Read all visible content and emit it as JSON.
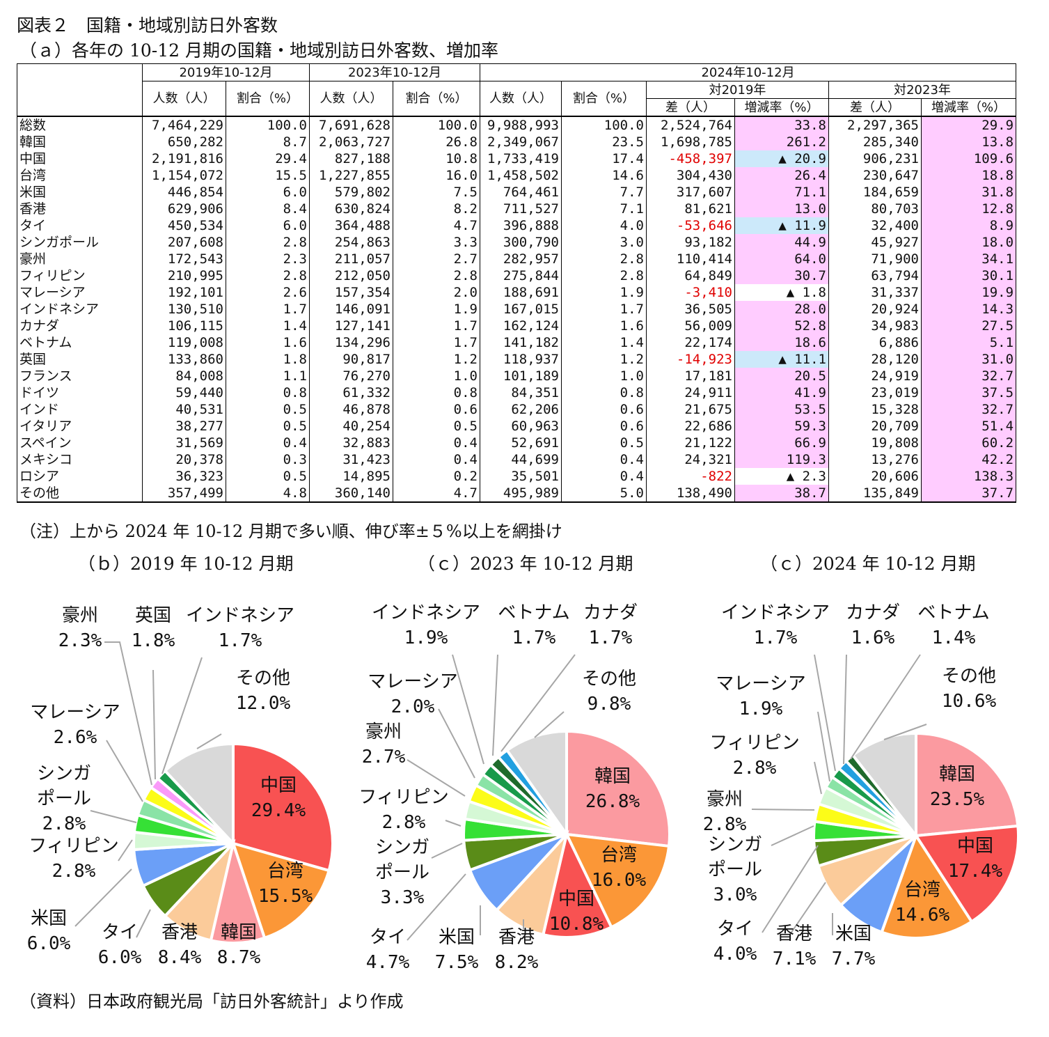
{
  "title": "図表２　国籍・地域別訪日外客数",
  "subtitle": "（ａ）各年の 10-12 月期の国籍・地域別訪日外客数、増加率",
  "note": "（注）上から 2024 年 10-12 月期で多い順、伸び率±５%以上を網掛け",
  "source": "（資料）日本政府観光局「訪日外客統計」より作成",
  "headers": {
    "p2019": "2019年10-12月",
    "p2023": "2023年10-12月",
    "p2024": "2024年10-12月",
    "count": "人数（人）",
    "share": "割合（%）",
    "vs2019": "対2019年",
    "vs2023": "対2023年",
    "diff": "差（人）",
    "rate": "増減率（%）"
  },
  "rows": [
    {
      "name": "総数",
      "c19": "7,464,229",
      "s19": "100.0",
      "c23": "7,691,628",
      "s23": "100.0",
      "c24": "9,988,993",
      "s24": "100.0",
      "d19": "2,524,764",
      "r19": "33.8",
      "d23": "2,297,365",
      "r23": "29.9"
    },
    {
      "name": "韓国",
      "c19": "650,282",
      "s19": "8.7",
      "c23": "2,063,727",
      "s23": "26.8",
      "c24": "2,349,067",
      "s24": "23.5",
      "d19": "1,698,785",
      "r19": "261.2",
      "d23": "285,340",
      "r23": "13.8"
    },
    {
      "name": "中国",
      "c19": "2,191,816",
      "s19": "29.4",
      "c23": "827,188",
      "s23": "10.8",
      "c24": "1,733,419",
      "s24": "17.4",
      "d19": "-458,397",
      "r19": "▲ 20.9",
      "d23": "906,231",
      "r23": "109.6"
    },
    {
      "name": "台湾",
      "c19": "1,154,072",
      "s19": "15.5",
      "c23": "1,227,855",
      "s23": "16.0",
      "c24": "1,458,502",
      "s24": "14.6",
      "d19": "304,430",
      "r19": "26.4",
      "d23": "230,647",
      "r23": "18.8"
    },
    {
      "name": "米国",
      "c19": "446,854",
      "s19": "6.0",
      "c23": "579,802",
      "s23": "7.5",
      "c24": "764,461",
      "s24": "7.7",
      "d19": "317,607",
      "r19": "71.1",
      "d23": "184,659",
      "r23": "31.8"
    },
    {
      "name": "香港",
      "c19": "629,906",
      "s19": "8.4",
      "c23": "630,824",
      "s23": "8.2",
      "c24": "711,527",
      "s24": "7.1",
      "d19": "81,621",
      "r19": "13.0",
      "d23": "80,703",
      "r23": "12.8"
    },
    {
      "name": "タイ",
      "c19": "450,534",
      "s19": "6.0",
      "c23": "364,488",
      "s23": "4.7",
      "c24": "396,888",
      "s24": "4.0",
      "d19": "-53,646",
      "r19": "▲ 11.9",
      "d23": "32,400",
      "r23": "8.9"
    },
    {
      "name": "シンガポール",
      "c19": "207,608",
      "s19": "2.8",
      "c23": "254,863",
      "s23": "3.3",
      "c24": "300,790",
      "s24": "3.0",
      "d19": "93,182",
      "r19": "44.9",
      "d23": "45,927",
      "r23": "18.0"
    },
    {
      "name": "豪州",
      "c19": "172,543",
      "s19": "2.3",
      "c23": "211,057",
      "s23": "2.7",
      "c24": "282,957",
      "s24": "2.8",
      "d19": "110,414",
      "r19": "64.0",
      "d23": "71,900",
      "r23": "34.1"
    },
    {
      "name": "フィリピン",
      "c19": "210,995",
      "s19": "2.8",
      "c23": "212,050",
      "s23": "2.8",
      "c24": "275,844",
      "s24": "2.8",
      "d19": "64,849",
      "r19": "30.7",
      "d23": "63,794",
      "r23": "30.1"
    },
    {
      "name": "マレーシア",
      "c19": "192,101",
      "s19": "2.6",
      "c23": "157,354",
      "s23": "2.0",
      "c24": "188,691",
      "s24": "1.9",
      "d19": "-3,410",
      "r19": "▲ 1.8",
      "d23": "31,337",
      "r23": "19.9"
    },
    {
      "name": "インドネシア",
      "c19": "130,510",
      "s19": "1.7",
      "c23": "146,091",
      "s23": "1.9",
      "c24": "167,015",
      "s24": "1.7",
      "d19": "36,505",
      "r19": "28.0",
      "d23": "20,924",
      "r23": "14.3"
    },
    {
      "name": "カナダ",
      "c19": "106,115",
      "s19": "1.4",
      "c23": "127,141",
      "s23": "1.7",
      "c24": "162,124",
      "s24": "1.6",
      "d19": "56,009",
      "r19": "52.8",
      "d23": "34,983",
      "r23": "27.5"
    },
    {
      "name": "ベトナム",
      "c19": "119,008",
      "s19": "1.6",
      "c23": "134,296",
      "s23": "1.7",
      "c24": "141,182",
      "s24": "1.4",
      "d19": "22,174",
      "r19": "18.6",
      "d23": "6,886",
      "r23": "5.1"
    },
    {
      "name": "英国",
      "c19": "133,860",
      "s19": "1.8",
      "c23": "90,817",
      "s23": "1.2",
      "c24": "118,937",
      "s24": "1.2",
      "d19": "-14,923",
      "r19": "▲ 11.1",
      "d23": "28,120",
      "r23": "31.0"
    },
    {
      "name": "フランス",
      "c19": "84,008",
      "s19": "1.1",
      "c23": "76,270",
      "s23": "1.0",
      "c24": "101,189",
      "s24": "1.0",
      "d19": "17,181",
      "r19": "20.5",
      "d23": "24,919",
      "r23": "32.7"
    },
    {
      "name": "ドイツ",
      "c19": "59,440",
      "s19": "0.8",
      "c23": "61,332",
      "s23": "0.8",
      "c24": "84,351",
      "s24": "0.8",
      "d19": "24,911",
      "r19": "41.9",
      "d23": "23,019",
      "r23": "37.5"
    },
    {
      "name": "インド",
      "c19": "40,531",
      "s19": "0.5",
      "c23": "46,878",
      "s23": "0.6",
      "c24": "62,206",
      "s24": "0.6",
      "d19": "21,675",
      "r19": "53.5",
      "d23": "15,328",
      "r23": "32.7"
    },
    {
      "name": "イタリア",
      "c19": "38,277",
      "s19": "0.5",
      "c23": "40,254",
      "s23": "0.5",
      "c24": "60,963",
      "s24": "0.6",
      "d19": "22,686",
      "r19": "59.3",
      "d23": "20,709",
      "r23": "51.4"
    },
    {
      "name": "スペイン",
      "c19": "31,569",
      "s19": "0.4",
      "c23": "32,883",
      "s23": "0.4",
      "c24": "52,691",
      "s24": "0.5",
      "d19": "21,122",
      "r19": "66.9",
      "d23": "19,808",
      "r23": "60.2"
    },
    {
      "name": "メキシコ",
      "c19": "20,378",
      "s19": "0.3",
      "c23": "31,423",
      "s23": "0.4",
      "c24": "44,699",
      "s24": "0.4",
      "d19": "24,321",
      "r19": "119.3",
      "d23": "13,276",
      "r23": "42.2"
    },
    {
      "name": "ロシア",
      "c19": "36,323",
      "s19": "0.5",
      "c23": "14,895",
      "s23": "0.2",
      "c24": "35,501",
      "s24": "0.4",
      "d19": "-822",
      "r19": "▲ 2.3",
      "d23": "20,606",
      "r23": "138.3"
    },
    {
      "name": "その他",
      "c19": "357,499",
      "s19": "4.8",
      "c23": "360,140",
      "s23": "4.7",
      "c24": "495,989",
      "s24": "5.0",
      "d19": "138,490",
      "r19": "38.7",
      "d23": "135,849",
      "r23": "37.7"
    }
  ],
  "colors": {
    "pink": "#ffccff",
    "blue": "#cce9fa",
    "negative": "#e00000",
    "中国": "#f85252",
    "台湾": "#fb9737",
    "韓国": "#fb9aa0",
    "香港": "#fbcb9a",
    "タイ": "#5a8c18",
    "米国": "#6b9ff7",
    "フィリピン": "#d5f8d5",
    "シンガポール": "#36e036",
    "マレーシア": "#8ae3a6",
    "豪州": "#fcfc18",
    "英国": "#fa9af9",
    "インドネシア": "#189a4a",
    "ベトナム": "#1f6b2c",
    "カナダ": "#22a0e0",
    "その他": "#d9d9d9",
    "others_small": "#e9e9e9"
  },
  "chart_data": [
    {
      "type": "pie",
      "title": "（ｂ）2019 年 10-12 月期",
      "slices": [
        {
          "name": "中国",
          "value": 29.4,
          "label": "29.4%"
        },
        {
          "name": "台湾",
          "value": 15.5,
          "label": "15.5%"
        },
        {
          "name": "韓国",
          "value": 8.7,
          "label": "8.7%"
        },
        {
          "name": "香港",
          "value": 8.4,
          "label": "8.4%"
        },
        {
          "name": "タイ",
          "value": 6.0,
          "label": "6.0%"
        },
        {
          "name": "米国",
          "value": 6.0,
          "label": "6.0%"
        },
        {
          "name": "フィリピン",
          "value": 2.8,
          "label": "2.8%"
        },
        {
          "name": "シンガポール",
          "value": 2.8,
          "label": "2.8%"
        },
        {
          "name": "マレーシア",
          "value": 2.6,
          "label": "2.6%"
        },
        {
          "name": "豪州",
          "value": 2.3,
          "label": "2.3%"
        },
        {
          "name": "英国",
          "value": 1.8,
          "label": "1.8%"
        },
        {
          "name": "インドネシア",
          "value": 1.7,
          "label": "1.7%"
        },
        {
          "name": "その他",
          "value": 12.0,
          "label": "12.0%"
        }
      ]
    },
    {
      "type": "pie",
      "title": "（ｃ）2023 年 10-12 月期",
      "slices": [
        {
          "name": "韓国",
          "value": 26.8,
          "label": "26.8%"
        },
        {
          "name": "台湾",
          "value": 16.0,
          "label": "16.0%"
        },
        {
          "name": "中国",
          "value": 10.8,
          "label": "10.8%"
        },
        {
          "name": "香港",
          "value": 8.2,
          "label": "8.2%"
        },
        {
          "name": "米国",
          "value": 7.5,
          "label": "7.5%"
        },
        {
          "name": "タイ",
          "value": 4.7,
          "label": "4.7%"
        },
        {
          "name": "シンガポール",
          "value": 3.3,
          "label": "3.3%"
        },
        {
          "name": "フィリピン",
          "value": 2.8,
          "label": "2.8%"
        },
        {
          "name": "豪州",
          "value": 2.7,
          "label": "2.7%"
        },
        {
          "name": "マレーシア",
          "value": 2.0,
          "label": "2.0%"
        },
        {
          "name": "インドネシア",
          "value": 1.9,
          "label": "1.9%"
        },
        {
          "name": "ベトナム",
          "value": 1.7,
          "label": "1.7%"
        },
        {
          "name": "カナダ",
          "value": 1.7,
          "label": "1.7%"
        },
        {
          "name": "その他",
          "value": 9.8,
          "label": "9.8%"
        }
      ]
    },
    {
      "type": "pie",
      "title": "（ｃ）2024 年 10-12 月期",
      "slices": [
        {
          "name": "韓国",
          "value": 23.5,
          "label": "23.5%"
        },
        {
          "name": "中国",
          "value": 17.4,
          "label": "17.4%"
        },
        {
          "name": "台湾",
          "value": 14.6,
          "label": "14.6%"
        },
        {
          "name": "米国",
          "value": 7.7,
          "label": "7.7%"
        },
        {
          "name": "香港",
          "value": 7.1,
          "label": "7.1%"
        },
        {
          "name": "タイ",
          "value": 4.0,
          "label": "4.0%"
        },
        {
          "name": "シンガポール",
          "value": 3.0,
          "label": "3.0%"
        },
        {
          "name": "豪州",
          "value": 2.8,
          "label": "2.8%"
        },
        {
          "name": "フィリピン",
          "value": 2.8,
          "label": "2.8%"
        },
        {
          "name": "マレーシア",
          "value": 1.9,
          "label": "1.9%"
        },
        {
          "name": "インドネシア",
          "value": 1.7,
          "label": "1.7%"
        },
        {
          "name": "カナダ",
          "value": 1.6,
          "label": "1.6%"
        },
        {
          "name": "ベトナム",
          "value": 1.4,
          "label": "1.4%"
        },
        {
          "name": "その他",
          "value": 10.6,
          "label": "10.6%"
        }
      ]
    }
  ]
}
